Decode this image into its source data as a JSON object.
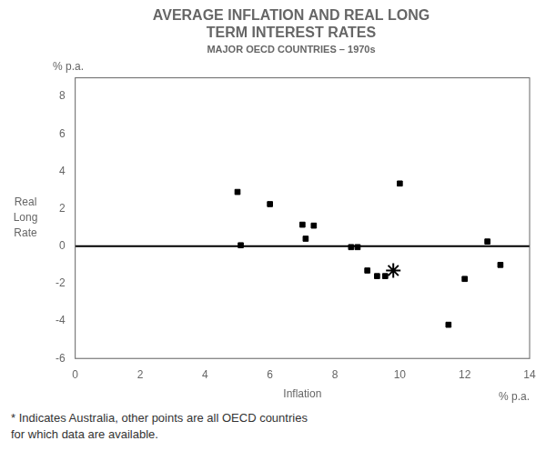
{
  "chart_data": {
    "type": "scatter",
    "title": [
      "AVERAGE INFLATION AND REAL LONG",
      "TERM INTEREST RATES"
    ],
    "subtitle": "MAJOR OECD COUNTRIES – 1970s",
    "xlabel": "Inflation",
    "ylabel": "Real\nLong\nRate",
    "y_unit_label": "% p.a.",
    "x_unit_label": "% p.a.",
    "footnote": [
      "* Indicates Australia, other points are all OECD countries",
      "for which data are available."
    ],
    "series": [
      {
        "marker": "square",
        "color": "#000000",
        "x": [
          5.0,
          6.0,
          5.1,
          7.0,
          7.35,
          7.1,
          8.5,
          8.7,
          9.0,
          9.3,
          9.55,
          10.0,
          11.5,
          12.0,
          12.7,
          13.1
        ],
        "values": [
          2.9,
          2.25,
          0.05,
          1.15,
          1.1,
          0.4,
          -0.05,
          -0.05,
          -1.3,
          -1.6,
          -1.6,
          3.35,
          -4.2,
          -1.75,
          0.25,
          -1.0
        ]
      },
      {
        "marker": "star",
        "color": "#000000",
        "x": [
          9.8
        ],
        "values": [
          -1.3
        ]
      }
    ],
    "hline": 0,
    "xlim": [
      0,
      14
    ],
    "ylim": [
      -6,
      9
    ],
    "xticks": [
      0,
      2,
      4,
      6,
      8,
      10,
      12,
      14
    ],
    "yticks": [
      -6,
      -4,
      -2,
      0,
      2,
      4,
      6,
      8
    ],
    "grid": false
  }
}
